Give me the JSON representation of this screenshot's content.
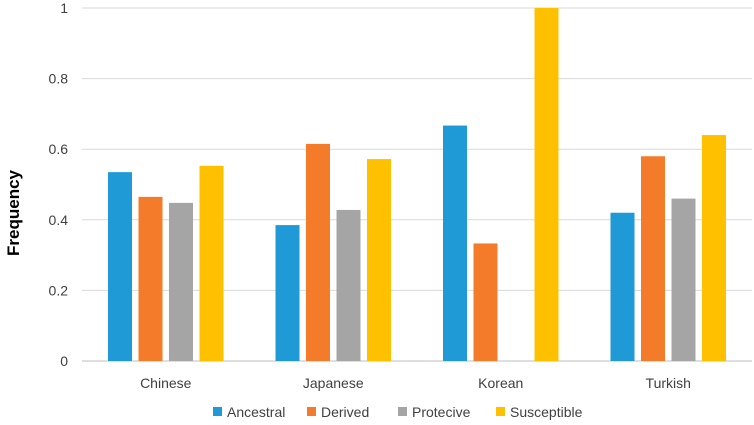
{
  "chart_data": {
    "type": "bar",
    "ylabel": "Frequency",
    "xlabel": "",
    "ylim": [
      0,
      1
    ],
    "yticks": [
      "0",
      "0.2",
      "0.4",
      "0.6",
      "0.8",
      "1"
    ],
    "categories": [
      "Chinese",
      "Japanese",
      "Korean",
      "Turkish"
    ],
    "series": [
      {
        "name": "Ancestral",
        "color": "#1f9ad6",
        "values": [
          0.535,
          0.385,
          0.667,
          0.42
        ]
      },
      {
        "name": "Derived",
        "color": "#f47b2a",
        "values": [
          0.465,
          0.615,
          0.333,
          0.58
        ]
      },
      {
        "name": "Protecive",
        "color": "#a5a5a5",
        "values": [
          0.448,
          0.428,
          0.0,
          0.46
        ]
      },
      {
        "name": "Susceptible",
        "color": "#ffc000",
        "values": [
          0.553,
          0.572,
          1.0,
          0.64
        ]
      }
    ],
    "grid": true,
    "legend_position": "bottom"
  }
}
